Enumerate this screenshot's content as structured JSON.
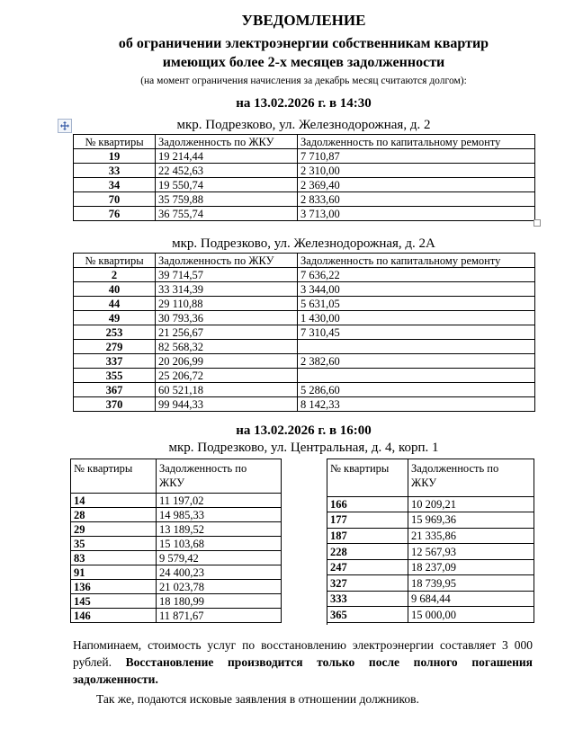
{
  "document": {
    "title": "УВЕДОМЛЕНИЕ",
    "subtitle_line1": "об ограничении электроэнергии собственникам квартир",
    "subtitle_line2": "имеющих более 2-х месяцев задолженности",
    "note": "(на момент ограничения начисления за декабрь месяц считаются долгом):"
  },
  "section1": {
    "datetime": "на 13.02.2026 г. в 14:30",
    "table_a": {
      "address": "мкр. Подрезково, ул. Железнодорожная, д. 2",
      "headers": [
        "№ квартиры",
        "Задолженность по ЖКУ",
        "Задолженность по капитальному ремонту"
      ],
      "rows": [
        [
          "19",
          "19 214,44",
          "7 710,87"
        ],
        [
          "33",
          "22 452,63",
          "2 310,00"
        ],
        [
          "34",
          "19 550,74",
          "2 369,40"
        ],
        [
          "70",
          "35 759,88",
          "2 833,60"
        ],
        [
          "76",
          "36 755,74",
          "3 713,00"
        ]
      ]
    },
    "table_b": {
      "address": "мкр. Подрезково, ул. Железнодорожная, д. 2А",
      "headers": [
        "№ квартиры",
        "Задолженность по ЖКУ",
        "Задолженность по капитальному ремонту"
      ],
      "rows": [
        [
          "2",
          "39 714,57",
          "7 636,22"
        ],
        [
          "40",
          "33 314,39",
          "3 344,00"
        ],
        [
          "44",
          "29 110,88",
          "5 631,05"
        ],
        [
          "49",
          "30 793,36",
          "1 430,00"
        ],
        [
          "253",
          "21 256,67",
          "7 310,45"
        ],
        [
          "279",
          "82 568,32",
          ""
        ],
        [
          "337",
          "20 206,99",
          "2 382,60"
        ],
        [
          "355",
          "25 206,72",
          ""
        ],
        [
          "367",
          "60 521,18",
          "5 286,60"
        ],
        [
          "370",
          "99 944,33",
          "8 142,33"
        ]
      ]
    }
  },
  "section2": {
    "datetime": "на 13.02.2026 г. в 16:00",
    "address": "мкр. Подрезково, ул. Центральная, д. 4, корп. 1",
    "table_left": {
      "headers": [
        "№ квартиры",
        "Задолженность по\nЖКУ"
      ],
      "rows": [
        [
          "14",
          "11 197,02"
        ],
        [
          "28",
          "14 985,33"
        ],
        [
          "29",
          "13 189,52"
        ],
        [
          "35",
          "15 103,68"
        ],
        [
          "83",
          "9 579,42"
        ],
        [
          "91",
          "24 400,23"
        ],
        [
          "136",
          "21 023,78"
        ],
        [
          "145",
          "18 180,99"
        ],
        [
          "146",
          "11 871,67"
        ]
      ]
    },
    "table_right": {
      "headers": [
        "№ квартиры",
        "Задолженность по\nЖКУ"
      ],
      "rows": [
        [
          "166",
          "10 209,21"
        ],
        [
          "177",
          "15 969,36"
        ],
        [
          "187",
          "21 335,86"
        ],
        [
          "228",
          "12 567,93"
        ],
        [
          "247",
          "18 237,09"
        ],
        [
          "327",
          "18 739,95"
        ],
        [
          "333",
          "9 684,44"
        ],
        [
          "365",
          "15 000,00"
        ]
      ]
    }
  },
  "footer": {
    "paragraph1_normal": "Напоминаем, стоимость услуг по восстановлению электроэнергии составляет 3 000 рублей. ",
    "paragraph1_bold": "Восстановление производится только после полного погашения задолженности.",
    "paragraph2": "Так же, подаются исковые заявления в отношении должников."
  },
  "icons": {
    "table_move_handle": "four-way-move-arrow",
    "table_resize_handle": "resize-square"
  }
}
